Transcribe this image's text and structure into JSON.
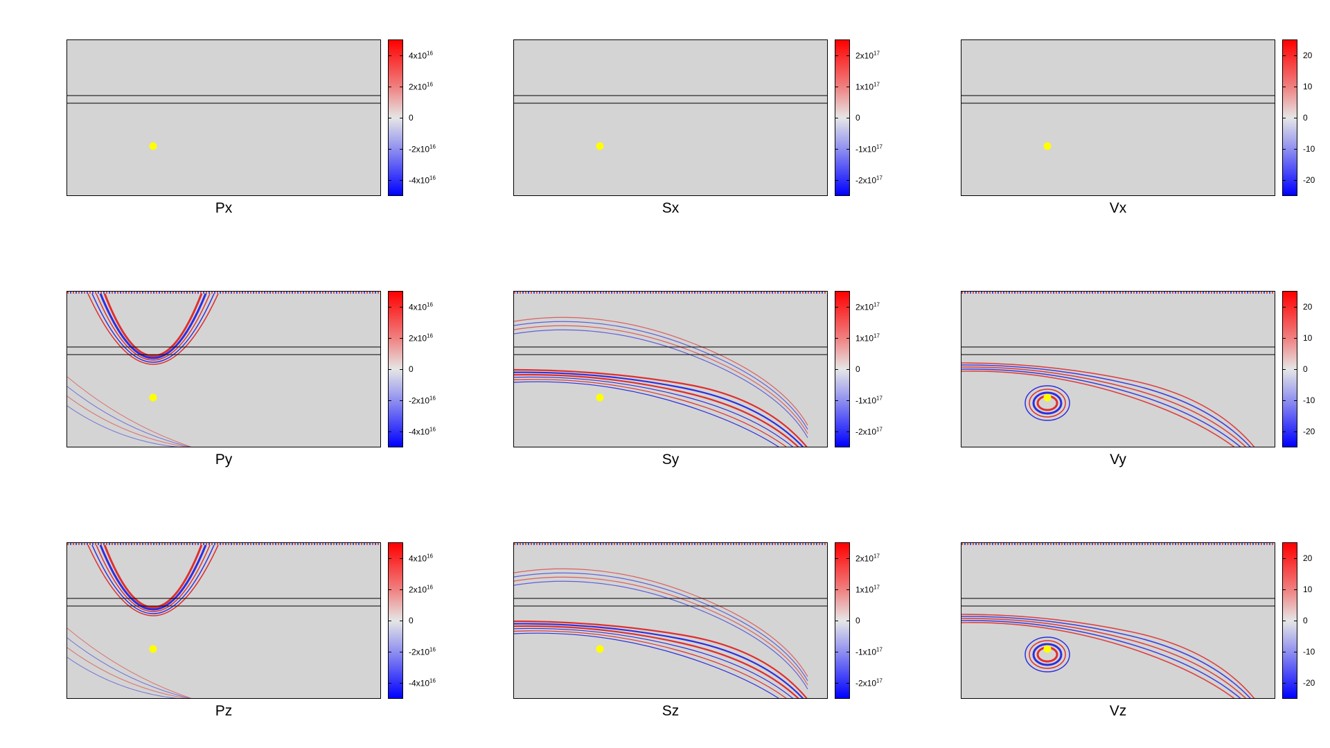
{
  "chart_data": [
    {
      "type": "heatmap",
      "label": "Px",
      "colormap": [
        "#0000ff",
        "#e6e6e6",
        "#ff0000"
      ],
      "clim": [
        -5e+16,
        5e+16
      ],
      "colorbar_ticks": [
        {
          "value": 4e+16,
          "label": "4x10^16"
        },
        {
          "value": 2e+16,
          "label": "2x10^16"
        },
        {
          "value": 0,
          "label": "0"
        },
        {
          "value": -2e+16,
          "label": "-2x10^16"
        },
        {
          "value": -4e+16,
          "label": "-4x10^16"
        }
      ],
      "source_marker": "yellow dot",
      "wave_pattern": "none"
    },
    {
      "type": "heatmap",
      "label": "Sx",
      "colormap": [
        "#0000ff",
        "#e6e6e6",
        "#ff0000"
      ],
      "clim": [
        -2.5e+17,
        2.5e+17
      ],
      "colorbar_ticks": [
        {
          "value": 2e+17,
          "label": "2x10^17"
        },
        {
          "value": 1e+17,
          "label": "1x10^17"
        },
        {
          "value": 0,
          "label": "0"
        },
        {
          "value": -1e+17,
          "label": "-1x10^17"
        },
        {
          "value": -2e+17,
          "label": "-2x10^17"
        }
      ],
      "source_marker": "yellow dot",
      "wave_pattern": "none"
    },
    {
      "type": "heatmap",
      "label": "Vx",
      "colormap": [
        "#0000ff",
        "#e6e6e6",
        "#ff0000"
      ],
      "clim": [
        -25,
        25
      ],
      "colorbar_ticks": [
        {
          "value": 20,
          "label": "20"
        },
        {
          "value": 10,
          "label": "10"
        },
        {
          "value": 0,
          "label": "0"
        },
        {
          "value": -10,
          "label": "-10"
        },
        {
          "value": -20,
          "label": "-20"
        }
      ],
      "source_marker": "yellow dot",
      "wave_pattern": "none"
    },
    {
      "type": "heatmap",
      "label": "Py",
      "colormap": [
        "#0000ff",
        "#e6e6e6",
        "#ff0000"
      ],
      "clim": [
        -5e+16,
        5e+16
      ],
      "colorbar_ticks": [
        {
          "value": 4e+16,
          "label": "4x10^16"
        },
        {
          "value": 2e+16,
          "label": "2x10^16"
        },
        {
          "value": 0,
          "label": "0"
        },
        {
          "value": -2e+16,
          "label": "-2x10^16"
        },
        {
          "value": -4e+16,
          "label": "-4x10^16"
        }
      ],
      "source_marker": "yellow dot",
      "wave_pattern": "p-wave"
    },
    {
      "type": "heatmap",
      "label": "Sy",
      "colormap": [
        "#0000ff",
        "#e6e6e6",
        "#ff0000"
      ],
      "clim": [
        -2.5e+17,
        2.5e+17
      ],
      "colorbar_ticks": [
        {
          "value": 2e+17,
          "label": "2x10^17"
        },
        {
          "value": 1e+17,
          "label": "1x10^17"
        },
        {
          "value": 0,
          "label": "0"
        },
        {
          "value": -1e+17,
          "label": "-1x10^17"
        },
        {
          "value": -2e+17,
          "label": "-2x10^17"
        }
      ],
      "source_marker": "yellow dot",
      "wave_pattern": "s-wave"
    },
    {
      "type": "heatmap",
      "label": "Vy",
      "colormap": [
        "#0000ff",
        "#e6e6e6",
        "#ff0000"
      ],
      "clim": [
        -25,
        25
      ],
      "colorbar_ticks": [
        {
          "value": 20,
          "label": "20"
        },
        {
          "value": 10,
          "label": "10"
        },
        {
          "value": 0,
          "label": "0"
        },
        {
          "value": -10,
          "label": "-10"
        },
        {
          "value": -20,
          "label": "-20"
        }
      ],
      "source_marker": "yellow dot",
      "wave_pattern": "mixed"
    },
    {
      "type": "heatmap",
      "label": "Pz",
      "colormap": [
        "#0000ff",
        "#e6e6e6",
        "#ff0000"
      ],
      "clim": [
        -5e+16,
        5e+16
      ],
      "colorbar_ticks": [
        {
          "value": 4e+16,
          "label": "4x10^16"
        },
        {
          "value": 2e+16,
          "label": "2x10^16"
        },
        {
          "value": 0,
          "label": "0"
        },
        {
          "value": -2e+16,
          "label": "-2x10^16"
        },
        {
          "value": -4e+16,
          "label": "-4x10^16"
        }
      ],
      "source_marker": "yellow dot",
      "wave_pattern": "p-wave"
    },
    {
      "type": "heatmap",
      "label": "Sz",
      "colormap": [
        "#0000ff",
        "#e6e6e6",
        "#ff0000"
      ],
      "clim": [
        -2.5e+17,
        2.5e+17
      ],
      "colorbar_ticks": [
        {
          "value": 2e+17,
          "label": "2x10^17"
        },
        {
          "value": 1e+17,
          "label": "1x10^17"
        },
        {
          "value": 0,
          "label": "0"
        },
        {
          "value": -1e+17,
          "label": "-1x10^17"
        },
        {
          "value": -2e+17,
          "label": "-2x10^17"
        }
      ],
      "source_marker": "yellow dot",
      "wave_pattern": "s-wave"
    },
    {
      "type": "heatmap",
      "label": "Vz",
      "colormap": [
        "#0000ff",
        "#e6e6e6",
        "#ff0000"
      ],
      "clim": [
        -25,
        25
      ],
      "colorbar_ticks": [
        {
          "value": 20,
          "label": "20"
        },
        {
          "value": 10,
          "label": "10"
        },
        {
          "value": 0,
          "label": "0"
        },
        {
          "value": -10,
          "label": "-10"
        },
        {
          "value": -20,
          "label": "-20"
        }
      ],
      "source_marker": "yellow dot",
      "wave_pattern": "mixed"
    }
  ]
}
